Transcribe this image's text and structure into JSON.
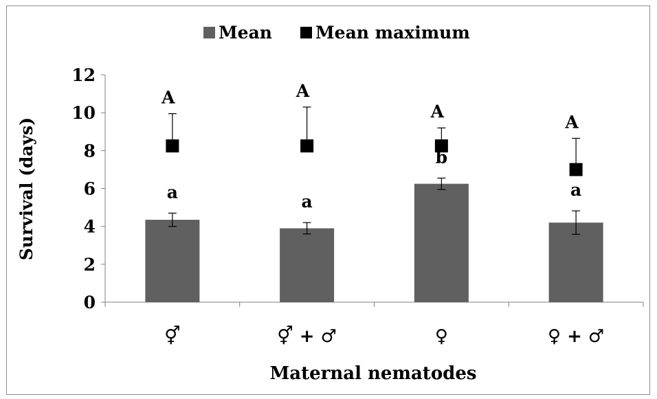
{
  "chart_data": {
    "type": "bar",
    "xlabel": "Maternal nematodes",
    "ylabel": "Survival (days)",
    "categories": [
      "⚥",
      "⚥ + ♂",
      "♀",
      "♀ + ♂"
    ],
    "ylim": [
      0,
      12
    ],
    "yticks": [
      0,
      2,
      4,
      6,
      8,
      10,
      12
    ],
    "legend_position": "top",
    "grid": false,
    "series": [
      {
        "name": "Mean",
        "type": "bar",
        "color": "#606060",
        "values": [
          4.35,
          3.9,
          6.25,
          4.2
        ],
        "error": [
          0.35,
          0.3,
          0.3,
          0.62
        ],
        "letters": [
          "a",
          "a",
          "b",
          "a"
        ]
      },
      {
        "name": "Mean maximum",
        "type": "marker",
        "color": "#000000",
        "values": [
          8.25,
          8.25,
          8.25,
          7.0
        ],
        "error": [
          1.7,
          2.05,
          0.95,
          1.65
        ],
        "letters": [
          "A",
          "A",
          "A",
          "A"
        ]
      }
    ]
  }
}
